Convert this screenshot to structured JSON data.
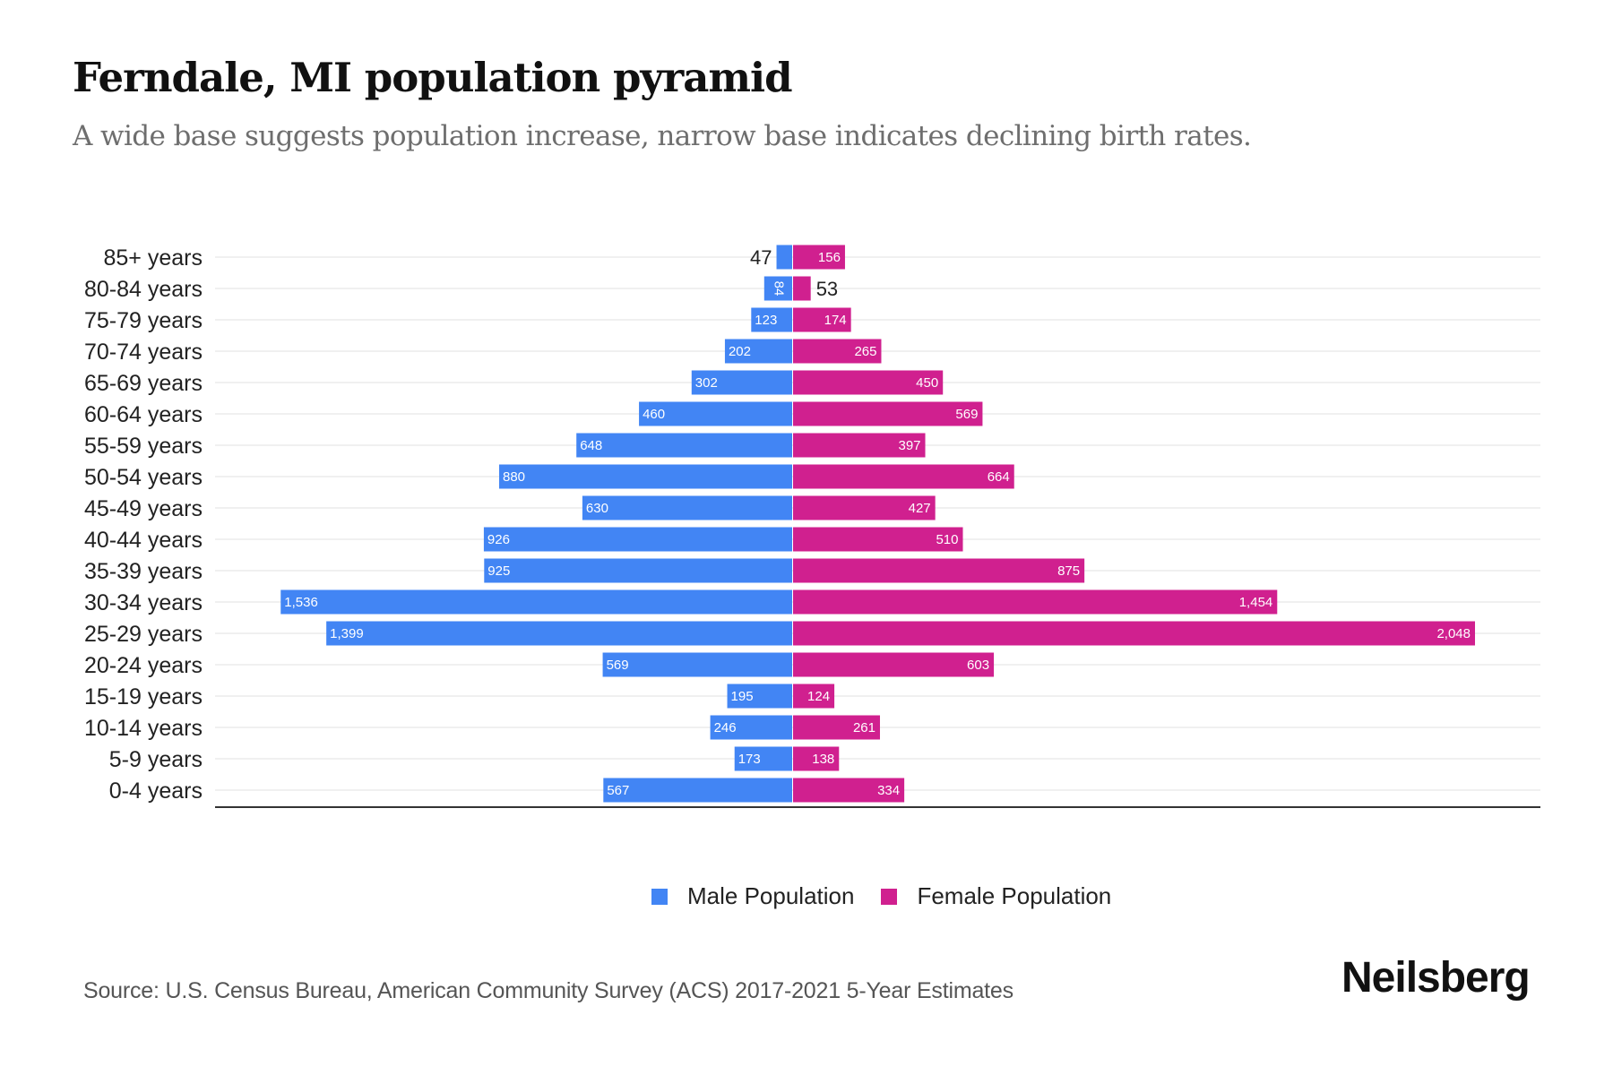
{
  "header": {
    "title": "Ferndale, MI population pyramid",
    "subtitle": "A wide base suggests population increase, narrow base indicates declining birth rates."
  },
  "footer": {
    "source": "Source: U.S. Census Bureau, American Community Survey (ACS) 2017-2021 5-Year Estimates",
    "brand": "Neilsberg"
  },
  "colors": {
    "male": "#4285f4",
    "female": "#d0208f",
    "gridline": "#ebebeb",
    "axis": "#333333"
  },
  "chart_data": {
    "type": "bar",
    "orientation": "horizontal-pyramid",
    "title": "Ferndale, MI population pyramid",
    "subtitle": "A wide base suggests population increase, narrow base indicates declining birth rates.",
    "xlabel": "",
    "ylabel": "",
    "grid": true,
    "legend_position": "bottom-center",
    "categories": [
      "85+ years",
      "80-84 years",
      "75-79 years",
      "70-74 years",
      "65-69 years",
      "60-64 years",
      "55-59 years",
      "50-54 years",
      "45-49 years",
      "40-44 years",
      "35-39 years",
      "30-34 years",
      "25-29 years",
      "20-24 years",
      "15-19 years",
      "10-14 years",
      "5-9 years",
      "0-4 years"
    ],
    "series": [
      {
        "name": "Male Population",
        "side": "left",
        "values": [
          47,
          84,
          123,
          202,
          302,
          460,
          648,
          880,
          630,
          926,
          925,
          1536,
          1399,
          569,
          195,
          246,
          173,
          567
        ],
        "labels": [
          "47",
          "84",
          "123",
          "202",
          "302",
          "460",
          "648",
          "880",
          "630",
          "926",
          "925",
          "1,536",
          "1,399",
          "569",
          "195",
          "246",
          "173",
          "567"
        ]
      },
      {
        "name": "Female Population",
        "side": "right",
        "values": [
          156,
          53,
          174,
          265,
          450,
          569,
          397,
          664,
          427,
          510,
          875,
          1454,
          2048,
          603,
          124,
          261,
          138,
          334
        ],
        "labels": [
          "156",
          "53",
          "174",
          "265",
          "450",
          "569",
          "397",
          "664",
          "427",
          "510",
          "875",
          "1,454",
          "2,048",
          "603",
          "124",
          "261",
          "138",
          "334"
        ]
      }
    ],
    "xlim": [
      -2048,
      2048
    ]
  },
  "legend": {
    "items": [
      {
        "label": "Male Population"
      },
      {
        "label": "Female Population"
      }
    ]
  }
}
